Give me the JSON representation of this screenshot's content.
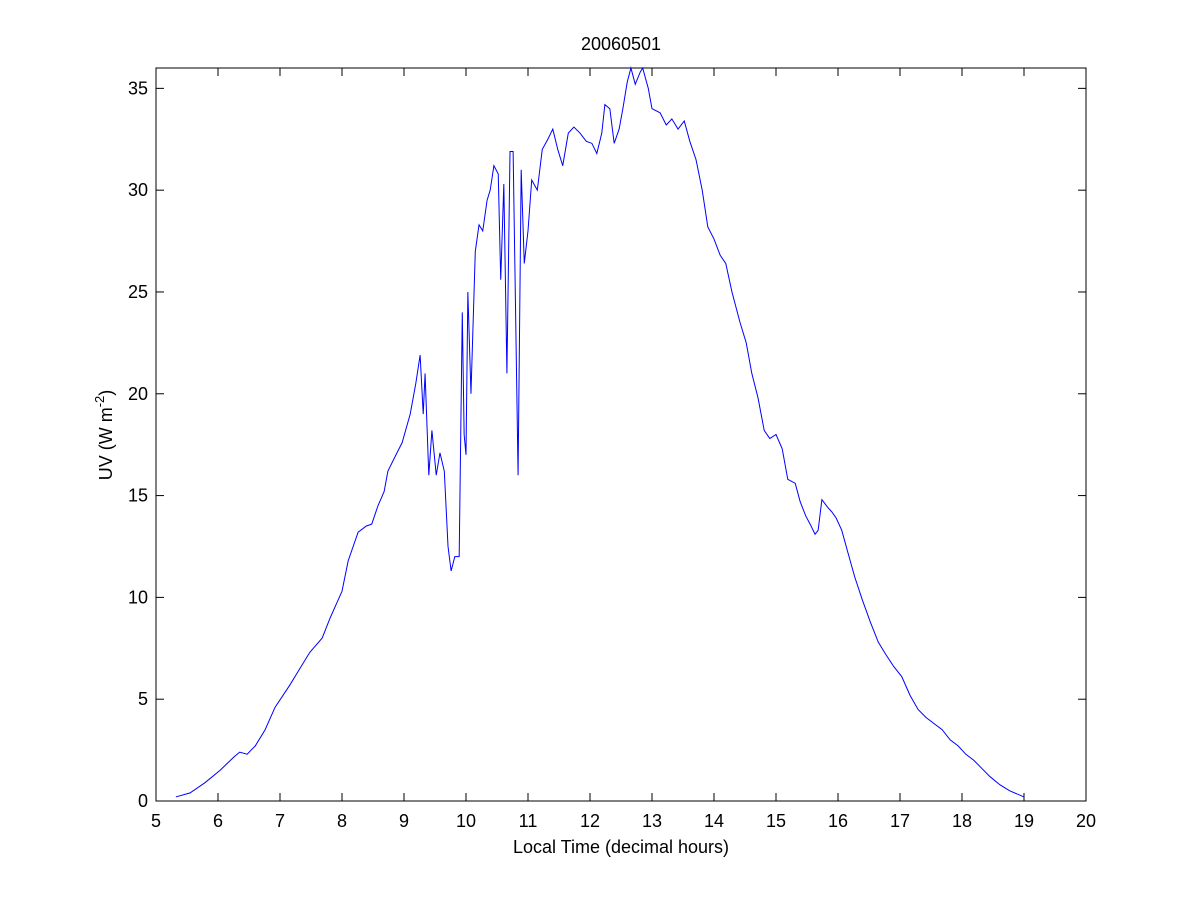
{
  "chart_data": {
    "type": "line",
    "title": "20060501",
    "xlabel": "Local Time (decimal hours)",
    "ylabel": [
      "UV (W m",
      "-2",
      ")"
    ],
    "xlim": [
      5,
      20
    ],
    "xticks": [
      5,
      6,
      7,
      8,
      9,
      10,
      11,
      12,
      13,
      14,
      15,
      16,
      17,
      18,
      19,
      20
    ],
    "ylim": [
      0,
      36
    ],
    "yticks": [
      0,
      5,
      10,
      15,
      20,
      25,
      30,
      35
    ],
    "grid": false,
    "color": "#0000ff",
    "x": [
      5.32,
      5.55,
      5.79,
      6.03,
      6.27,
      6.35,
      6.47,
      6.6,
      6.76,
      6.92,
      7.16,
      7.32,
      7.48,
      7.68,
      7.81,
      8.0,
      8.1,
      8.26,
      8.39,
      8.48,
      8.58,
      8.68,
      8.74,
      8.87,
      8.97,
      9.1,
      9.19,
      9.26,
      9.31,
      9.34,
      9.4,
      9.45,
      9.52,
      9.58,
      9.65,
      9.71,
      9.76,
      9.82,
      9.89,
      9.94,
      9.97,
      10.0,
      10.03,
      10.08,
      10.15,
      10.21,
      10.27,
      10.34,
      10.39,
      10.45,
      10.52,
      10.56,
      10.61,
      10.66,
      10.71,
      10.76,
      10.81,
      10.84,
      10.89,
      10.94,
      11.0,
      11.06,
      11.15,
      11.23,
      11.32,
      11.4,
      11.48,
      11.56,
      11.65,
      11.74,
      11.84,
      11.94,
      12.03,
      12.11,
      12.19,
      12.24,
      12.32,
      12.39,
      12.47,
      12.53,
      12.6,
      12.66,
      12.73,
      12.81,
      12.85,
      12.94,
      13.0,
      13.13,
      13.23,
      13.32,
      13.42,
      13.52,
      13.61,
      13.71,
      13.81,
      13.9,
      14.0,
      14.1,
      14.19,
      14.29,
      14.42,
      14.52,
      14.61,
      14.71,
      14.81,
      14.9,
      15.0,
      15.1,
      15.19,
      15.31,
      15.39,
      15.48,
      15.55,
      15.63,
      15.68,
      15.74,
      15.84,
      15.9,
      15.97,
      16.06,
      16.16,
      16.27,
      16.39,
      16.52,
      16.65,
      16.77,
      16.9,
      17.03,
      17.16,
      17.29,
      17.42,
      17.55,
      17.68,
      17.81,
      17.94,
      18.06,
      18.19,
      18.32,
      18.45,
      18.61,
      18.77,
      19.0
    ],
    "values": [
      0.2,
      0.4,
      0.9,
      1.5,
      2.2,
      2.4,
      2.3,
      2.7,
      3.5,
      4.6,
      5.7,
      6.5,
      7.3,
      8.0,
      9.0,
      10.3,
      11.8,
      13.2,
      13.5,
      13.6,
      14.5,
      15.2,
      16.2,
      17.0,
      17.6,
      19.0,
      20.5,
      21.9,
      19.0,
      21.0,
      16.0,
      18.2,
      16.0,
      17.1,
      16.2,
      12.5,
      11.3,
      12.0,
      12.0,
      24.0,
      18.0,
      17.0,
      25.0,
      20.0,
      27.0,
      28.3,
      28.0,
      29.5,
      30.0,
      31.2,
      30.8,
      25.6,
      30.3,
      21.0,
      31.9,
      31.9,
      22.0,
      16.0,
      31.0,
      26.4,
      28.0,
      30.5,
      30.0,
      32.0,
      32.5,
      33.0,
      32.0,
      31.2,
      32.8,
      33.1,
      32.8,
      32.4,
      32.3,
      31.8,
      32.8,
      34.2,
      34.0,
      32.3,
      33.0,
      34.0,
      35.3,
      36.0,
      35.2,
      35.8,
      36.0,
      35.0,
      34.0,
      33.8,
      33.2,
      33.5,
      33.0,
      33.4,
      32.4,
      31.5,
      30.0,
      28.2,
      27.6,
      26.8,
      26.4,
      25.0,
      23.5,
      22.5,
      21.0,
      19.8,
      18.2,
      17.8,
      18.0,
      17.3,
      15.8,
      15.6,
      14.7,
      14.0,
      13.6,
      13.1,
      13.3,
      14.8,
      14.4,
      14.2,
      13.9,
      13.3,
      12.2,
      11.0,
      9.9,
      8.8,
      7.8,
      7.2,
      6.6,
      6.1,
      5.2,
      4.5,
      4.1,
      3.8,
      3.5,
      3.0,
      2.7,
      2.3,
      2.0,
      1.6,
      1.2,
      0.8,
      0.5,
      0.2
    ]
  }
}
